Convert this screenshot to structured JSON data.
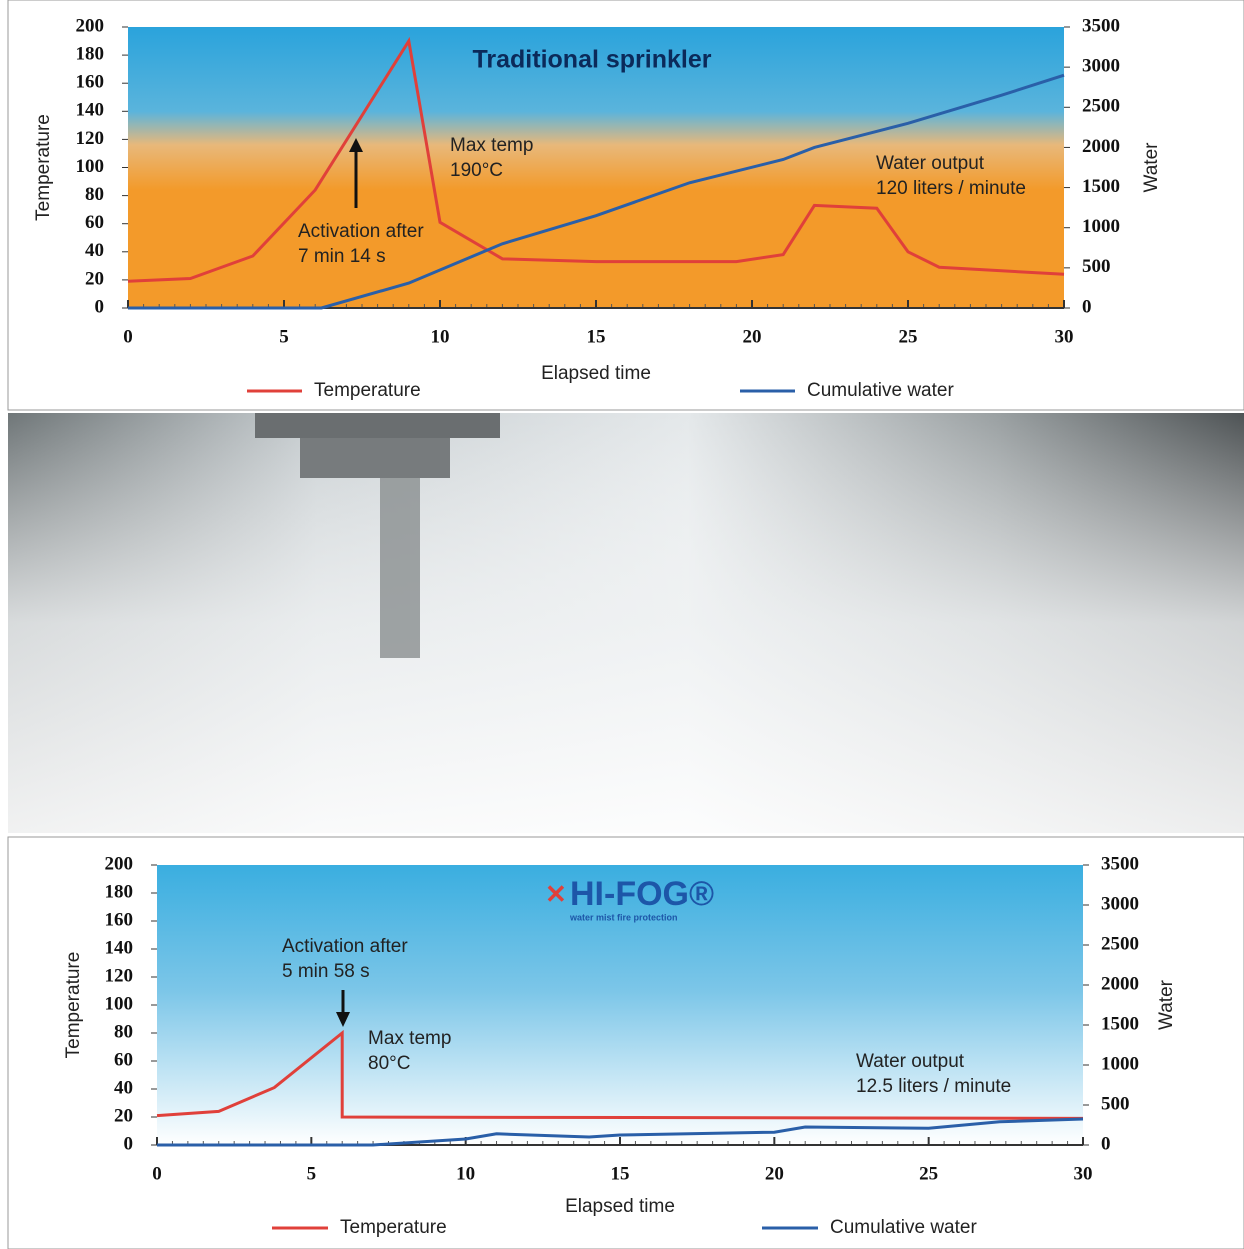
{
  "chart_data": [
    {
      "type": "line",
      "title": "Traditional sprinkler",
      "xlabel": "Elapsed time",
      "ylabel": "Temperature",
      "y2label": "Water",
      "xlim": [
        0,
        30
      ],
      "xticks": [
        0,
        5,
        10,
        15,
        20,
        25,
        30
      ],
      "ylim": [
        0,
        200
      ],
      "yticks": [
        0,
        20,
        40,
        60,
        80,
        100,
        120,
        140,
        160,
        180,
        200
      ],
      "y2lim": [
        0,
        3500
      ],
      "y2ticks": [
        0,
        500,
        1000,
        1500,
        2000,
        2500,
        3000,
        3500
      ],
      "series": [
        {
          "name": "Temperature",
          "color": "#e0403a",
          "x": [
            0,
            2,
            4,
            6,
            9,
            10,
            12,
            15,
            19.5,
            21,
            22,
            24,
            25,
            26,
            30
          ],
          "values": [
            19,
            21,
            37,
            84,
            190,
            61,
            35,
            33,
            33,
            38,
            73,
            71,
            40,
            29,
            24
          ]
        },
        {
          "name": "Cumulative water",
          "color": "#2a5fa8",
          "axis": "y2",
          "x": [
            0,
            6.2,
            9,
            12,
            15,
            18,
            21,
            22,
            25,
            28,
            30
          ],
          "values": [
            0,
            0,
            310,
            800,
            1150,
            1560,
            1850,
            2000,
            2300,
            2650,
            2900
          ]
        }
      ],
      "annotations": [
        [
          "Max temp",
          "190°C"
        ],
        [
          "Activation after",
          "7 min 14 s"
        ],
        [
          "Water output",
          "120 liters / minute"
        ]
      ]
    },
    {
      "type": "line",
      "logo": "HI-FOG®",
      "logo_tagline": "water mist fire protection",
      "xlabel": "Elapsed time",
      "ylabel": "Temperature",
      "y2label": "Water",
      "xlim": [
        0,
        30
      ],
      "xticks": [
        0,
        5,
        10,
        15,
        20,
        25,
        30
      ],
      "ylim": [
        0,
        200
      ],
      "yticks": [
        0,
        20,
        40,
        60,
        80,
        100,
        120,
        140,
        160,
        180,
        200
      ],
      "y2lim": [
        0,
        3500
      ],
      "y2ticks": [
        0,
        500,
        1000,
        1500,
        2000,
        2500,
        3000,
        3500
      ],
      "series": [
        {
          "name": "Temperature",
          "color": "#e0403a",
          "x": [
            0,
            2,
            3.8,
            6,
            6,
            30
          ],
          "values": [
            21,
            24,
            41,
            80,
            20,
            19
          ]
        },
        {
          "name": "Cumulative water",
          "color": "#2a5fa8",
          "axis": "y2",
          "x": [
            0,
            7,
            10,
            11,
            14,
            15,
            20,
            21,
            25,
            27.3,
            30
          ],
          "values": [
            0,
            0,
            75,
            140,
            100,
            125,
            160,
            225,
            210,
            290,
            325
          ]
        }
      ],
      "annotations": [
        [
          "Activation after",
          "5 min 58 s"
        ],
        [
          "Max temp",
          "80°C"
        ],
        [
          "Water output",
          "12.5 liters / minute"
        ]
      ]
    }
  ]
}
